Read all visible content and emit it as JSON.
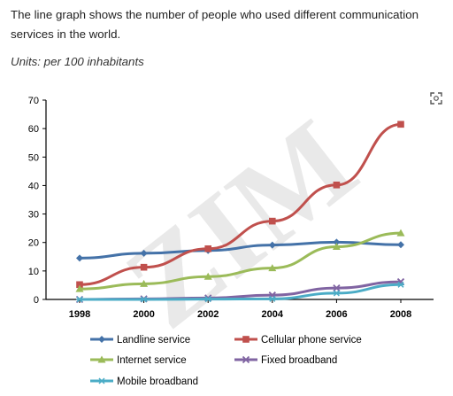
{
  "intro": "The line graph shows the number of people who used different communication services in the world.",
  "units": "Units: per 100 inhabitants",
  "watermark": "ZIM",
  "zoom_icon": "expand-icon",
  "chart_data": {
    "type": "line",
    "x": [
      1998,
      2000,
      2002,
      2004,
      2006,
      2008
    ],
    "ylim": [
      0,
      70
    ],
    "yticks": [
      0,
      10,
      20,
      30,
      40,
      50,
      60,
      70
    ],
    "grid": false,
    "legend_position": "bottom",
    "series": [
      {
        "name": "Landline service",
        "color": "#4472a8",
        "marker": "diamond",
        "values": [
          14.5,
          16.2,
          17.2,
          19.1,
          20.1,
          19.2
        ]
      },
      {
        "name": "Cellular phone service",
        "color": "#c0504d",
        "marker": "square",
        "values": [
          5.2,
          11.3,
          17.8,
          27.5,
          40.2,
          61.5
        ]
      },
      {
        "name": "Internet service",
        "color": "#9bbb59",
        "marker": "triangle",
        "values": [
          3.7,
          5.5,
          8.0,
          11.0,
          18.5,
          23.3
        ]
      },
      {
        "name": "Fixed broadband",
        "color": "#8064a2",
        "marker": "xstar",
        "values": [
          0.0,
          0.2,
          0.5,
          1.5,
          4.0,
          6.2
        ]
      },
      {
        "name": "Mobile broadband",
        "color": "#4bacc6",
        "marker": "asterisk",
        "values": [
          0.0,
          0.0,
          0.1,
          0.2,
          2.2,
          5.2
        ]
      }
    ]
  }
}
